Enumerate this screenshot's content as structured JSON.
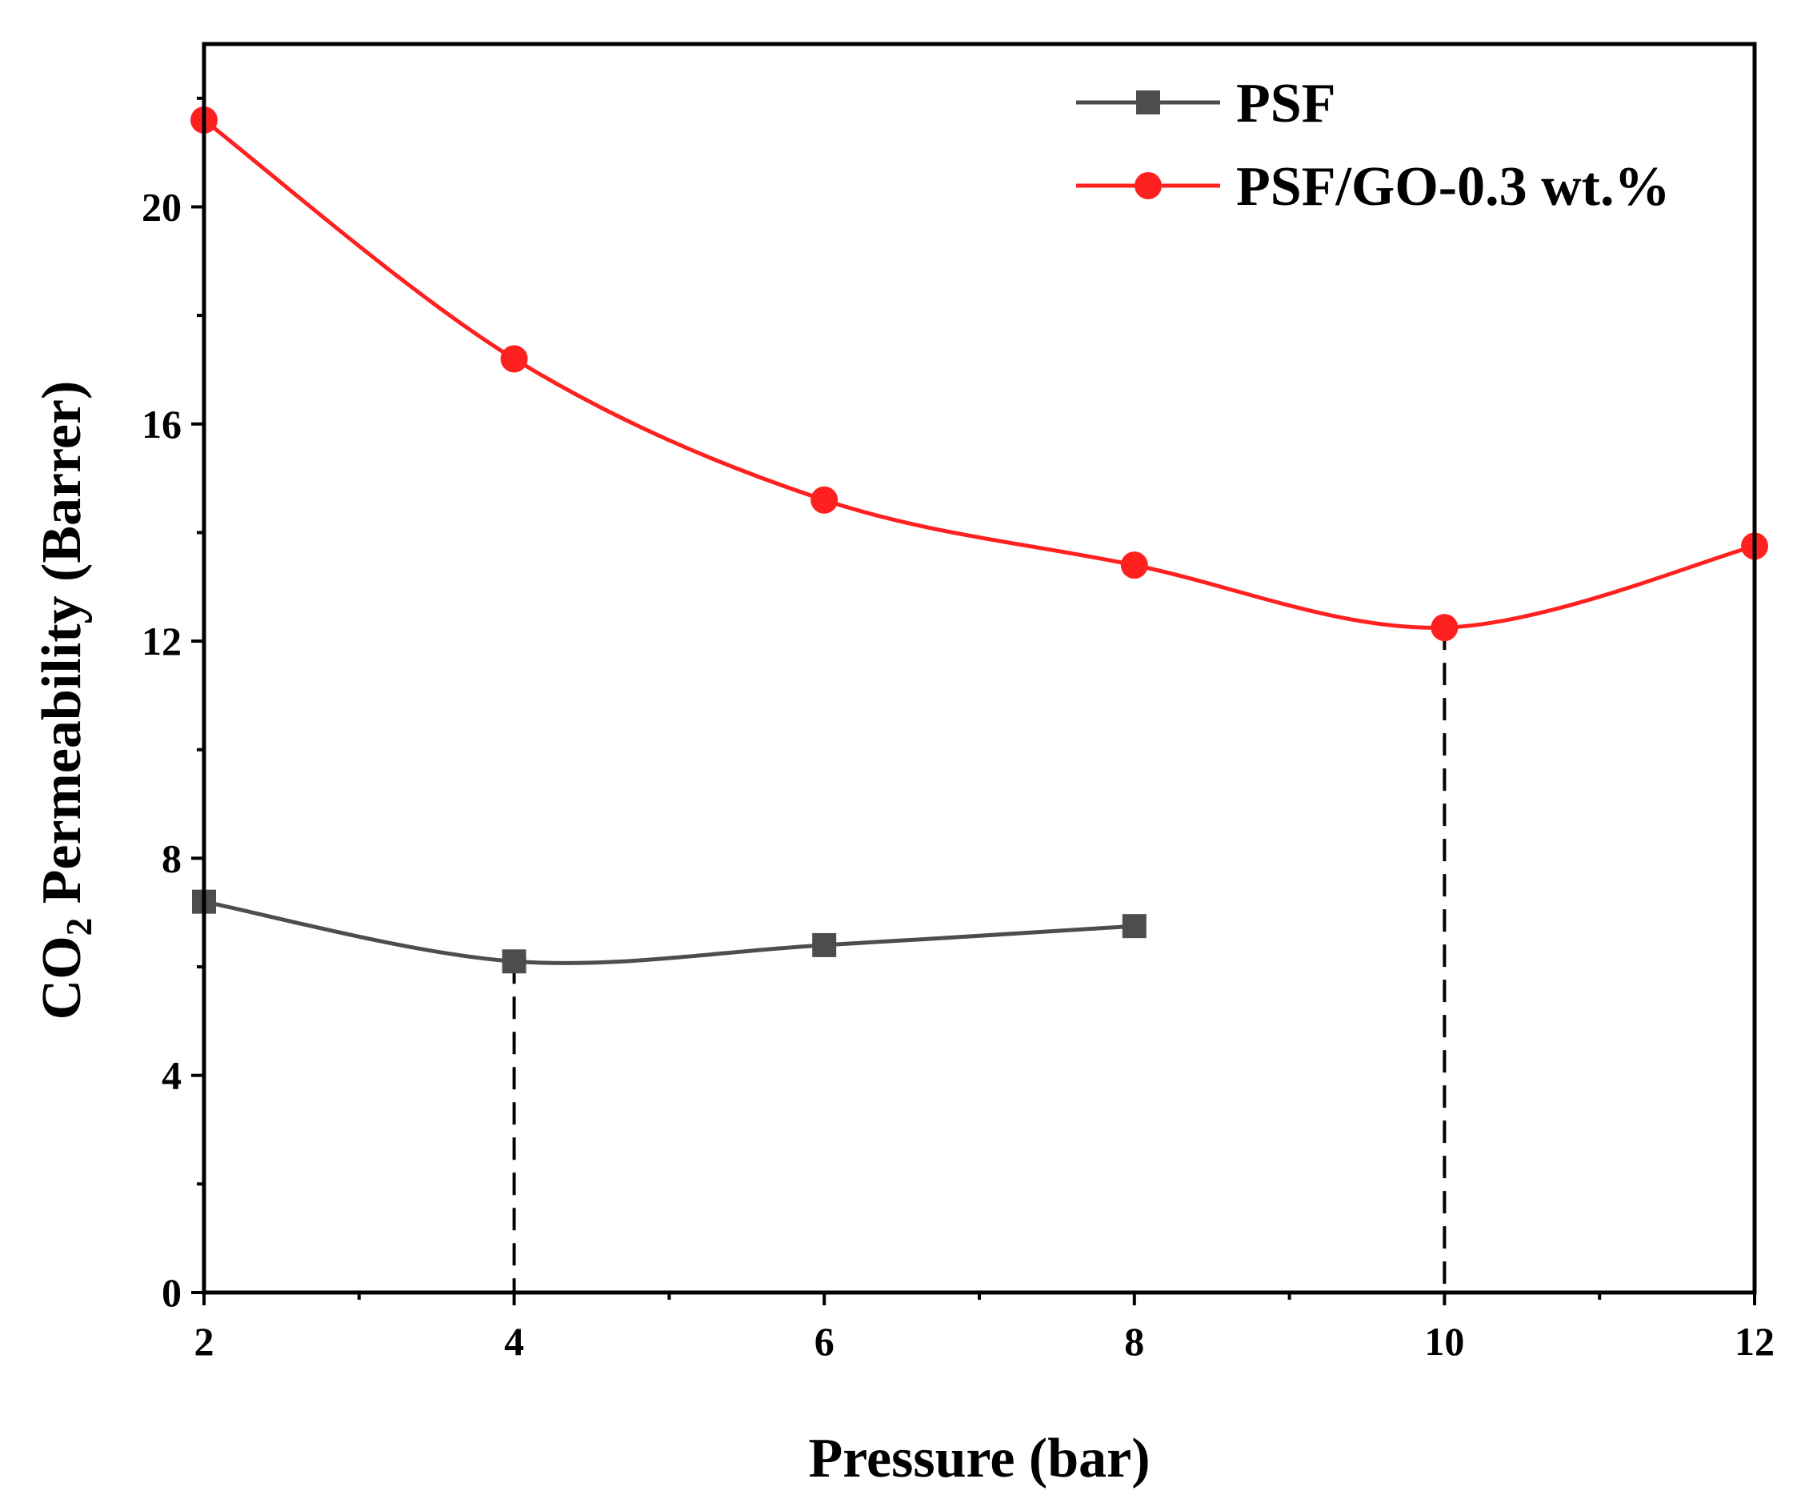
{
  "chart_data": {
    "type": "line",
    "title": "",
    "xlabel": "Pressure (bar)",
    "ylabel": "CO2 Permeability (Barrer)",
    "ylabel_parts": {
      "pre": "CO",
      "sub": "2",
      "post": " Permeability (Barrer)"
    },
    "xlim": [
      2,
      12
    ],
    "ylim": [
      0,
      23
    ],
    "xticks": [
      2,
      4,
      6,
      8,
      10,
      12
    ],
    "yticks": [
      0,
      4,
      8,
      12,
      16,
      20
    ],
    "grid": false,
    "legend_position": "top-right",
    "series": [
      {
        "name": "PSF",
        "color": "#4d4d4d",
        "marker": "square",
        "x": [
          2,
          4,
          6,
          8
        ],
        "y": [
          7.2,
          6.1,
          6.4,
          6.75
        ]
      },
      {
        "name": "PSF/GO-0.3 wt.%",
        "color": "#ff2020",
        "marker": "circle",
        "x": [
          2,
          4,
          6,
          8,
          10,
          12
        ],
        "y": [
          21.6,
          17.2,
          14.6,
          13.4,
          12.25,
          13.75
        ]
      }
    ],
    "annotations": [
      {
        "type": "dashed-drop-line",
        "x": 4,
        "from_y": 6.1,
        "to_y": 0
      },
      {
        "type": "dashed-drop-line",
        "x": 10,
        "from_y": 12.25,
        "to_y": 0
      }
    ]
  }
}
